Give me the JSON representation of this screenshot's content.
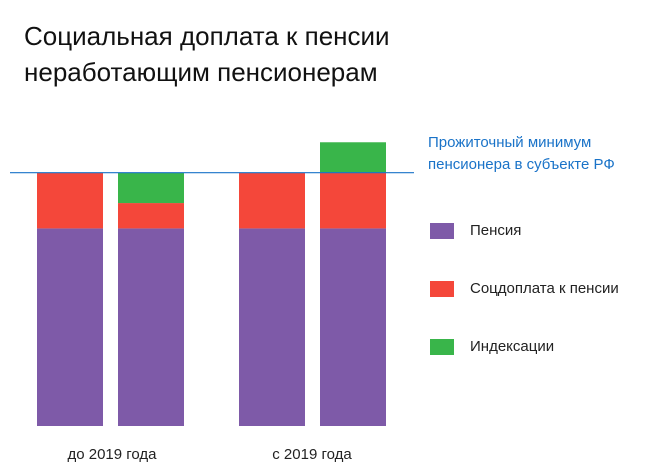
{
  "title": "Социальная доплата к пенсии неработающим пенсионерам",
  "reference_line_label": "Прожиточный минимум пенсионера в субъекте РФ",
  "colors": {
    "pension": "#7e5aa8",
    "supplement": "#f4473a",
    "indexation": "#39b54a",
    "reference_line": "#1a73c8"
  },
  "legend": [
    {
      "label": "Пенсия",
      "color": "#7e5aa8"
    },
    {
      "label": "Соцдоплата к пенсии",
      "color": "#f4473a"
    },
    {
      "label": "Индексации",
      "color": "#39b54a"
    }
  ],
  "chart_data": {
    "type": "bar",
    "stacked": true,
    "groups": [
      "до 2019 года",
      "с 2019 года"
    ],
    "bars_per_group": 2,
    "reference_line": {
      "value": 100,
      "label": "Прожиточный минимум пенсионера в субъекте РФ"
    },
    "ylim": [
      0,
      120
    ],
    "series": [
      {
        "name": "Пенсия",
        "values": [
          78,
          78,
          78,
          78
        ]
      },
      {
        "name": "Соцдоплата к пенсии",
        "values": [
          22,
          10,
          22,
          22
        ]
      },
      {
        "name": "Индексации",
        "values": [
          0,
          12,
          0,
          12
        ]
      }
    ],
    "legend_position": "right",
    "grid": false
  }
}
